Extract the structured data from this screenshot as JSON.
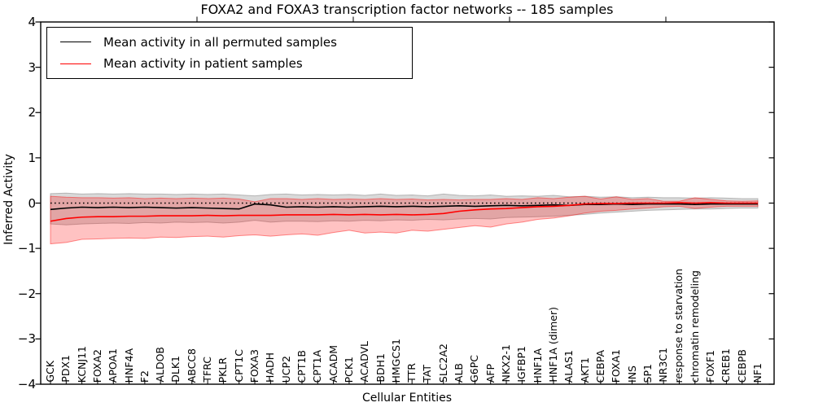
{
  "figure": {
    "title": "FOXA2 and FOXA3 transcription factor networks -- 185 samples",
    "xlabel": "Cellular Entities",
    "ylabel": "Inferred Activity"
  },
  "legend": {
    "items": [
      {
        "label": "Mean activity in all permuted samples",
        "color": "#000000"
      },
      {
        "label": "Mean activity in patient samples",
        "color": "#ff0000"
      }
    ]
  },
  "chart_data": {
    "type": "line",
    "title": "FOXA2 and FOXA3 transcription factor networks -- 185 samples",
    "xlabel": "Cellular Entities",
    "ylabel": "Inferred Activity",
    "ylim": [
      -4,
      4
    ],
    "yticks": [
      4,
      3,
      2,
      1,
      0,
      -1,
      -2,
      -3,
      -4
    ],
    "grid": false,
    "legend_position": "upper left",
    "reference_line": {
      "y": 0,
      "style": "dotted",
      "color": "#000000"
    },
    "categories": [
      "GCK",
      "PDX1",
      "KCNJ11",
      "FOXA2",
      "APOA1",
      "HNF4A",
      "F2",
      "ALDOB",
      "DLK1",
      "ABCC8",
      "TFRC",
      "PKLR",
      "CPT1C",
      "FOXA3",
      "HADH",
      "UCP2",
      "CPT1B",
      "CPT1A",
      "ACADM",
      "PCK1",
      "ACADVL",
      "BDH1",
      "HMGCS1",
      "TTR",
      "TAT",
      "SLC2A2",
      "ALB",
      "G6PC",
      "AFP",
      "NKX2-1",
      "IGFBP1",
      "HNF1A",
      "HNF1A (dimer)",
      "ALAS1",
      "AKT1",
      "CEBPA",
      "FOXA1",
      "INS",
      "SP1",
      "NR3C1",
      "response to starvation",
      "chromatin remodeling",
      "FOXF1",
      "CREB1",
      "CEBPB",
      "NF1"
    ],
    "series": [
      {
        "name": "Mean activity in all permuted samples",
        "color": "#000000",
        "values": [
          -0.14,
          -0.11,
          -0.09,
          -0.1,
          -0.09,
          -0.1,
          -0.09,
          -0.1,
          -0.11,
          -0.1,
          -0.11,
          -0.12,
          -0.13,
          -0.02,
          -0.04,
          -0.09,
          -0.08,
          -0.09,
          -0.08,
          -0.09,
          -0.08,
          -0.07,
          -0.08,
          -0.07,
          -0.08,
          -0.07,
          -0.06,
          -0.07,
          -0.06,
          -0.05,
          -0.06,
          -0.05,
          -0.04,
          -0.05,
          -0.03,
          -0.03,
          -0.02,
          -0.03,
          -0.02,
          -0.02,
          -0.02,
          -0.03,
          -0.02,
          -0.02,
          -0.02,
          -0.02
        ]
      },
      {
        "name": "Mean activity in patient samples",
        "color": "#ff0000",
        "values": [
          -0.4,
          -0.34,
          -0.31,
          -0.3,
          -0.3,
          -0.29,
          -0.29,
          -0.28,
          -0.28,
          -0.28,
          -0.27,
          -0.28,
          -0.27,
          -0.27,
          -0.27,
          -0.26,
          -0.26,
          -0.26,
          -0.25,
          -0.26,
          -0.25,
          -0.26,
          -0.25,
          -0.26,
          -0.25,
          -0.23,
          -0.18,
          -0.15,
          -0.13,
          -0.12,
          -0.1,
          -0.08,
          -0.07,
          -0.05,
          -0.02,
          -0.01,
          -0.01,
          0,
          0,
          0,
          0.01,
          0,
          0.01,
          0,
          0,
          0
        ]
      }
    ],
    "bands": [
      {
        "name": "permuted-samples-std-band",
        "color": "#808080",
        "alpha": 0.3,
        "upper": [
          0.21,
          0.22,
          0.2,
          0.21,
          0.2,
          0.21,
          0.2,
          0.2,
          0.19,
          0.2,
          0.19,
          0.2,
          0.18,
          0.16,
          0.19,
          0.2,
          0.18,
          0.19,
          0.18,
          0.19,
          0.17,
          0.2,
          0.17,
          0.18,
          0.16,
          0.2,
          0.17,
          0.16,
          0.18,
          0.15,
          0.16,
          0.15,
          0.17,
          0.14,
          0.15,
          0.13,
          0.14,
          0.12,
          0.13,
          0.12,
          0.12,
          0.11,
          0.12,
          0.11,
          0.1,
          0.1
        ],
        "lower": [
          -0.46,
          -0.48,
          -0.46,
          -0.45,
          -0.44,
          -0.45,
          -0.43,
          -0.44,
          -0.42,
          -0.43,
          -0.42,
          -0.44,
          -0.42,
          -0.38,
          -0.42,
          -0.4,
          -0.4,
          -0.41,
          -0.39,
          -0.4,
          -0.38,
          -0.39,
          -0.37,
          -0.38,
          -0.36,
          -0.37,
          -0.35,
          -0.34,
          -0.35,
          -0.32,
          -0.31,
          -0.3,
          -0.29,
          -0.27,
          -0.25,
          -0.22,
          -0.2,
          -0.18,
          -0.16,
          -0.15,
          -0.14,
          -0.13,
          -0.13,
          -0.12,
          -0.11,
          -0.11
        ]
      },
      {
        "name": "patient-samples-std-band",
        "color": "#ff0000",
        "alpha": 0.24,
        "upper": [
          0.15,
          0.13,
          0.12,
          0.12,
          0.11,
          0.12,
          0.1,
          0.11,
          0.1,
          0.11,
          0.1,
          0.11,
          0.09,
          0.03,
          0.1,
          0.1,
          0.08,
          0.1,
          0.08,
          0.09,
          0.08,
          0.1,
          0.08,
          0.09,
          0.07,
          0.08,
          0.07,
          0.08,
          0.08,
          0.1,
          0.08,
          0.12,
          0.1,
          0.13,
          0.15,
          0.09,
          0.14,
          0.08,
          0.1,
          0.04,
          0.04,
          0.12,
          0.08,
          0.05,
          0.04,
          0.05
        ],
        "lower": [
          -0.9,
          -0.87,
          -0.8,
          -0.79,
          -0.78,
          -0.77,
          -0.78,
          -0.75,
          -0.76,
          -0.74,
          -0.73,
          -0.75,
          -0.72,
          -0.7,
          -0.73,
          -0.7,
          -0.68,
          -0.71,
          -0.65,
          -0.6,
          -0.66,
          -0.64,
          -0.66,
          -0.6,
          -0.62,
          -0.58,
          -0.54,
          -0.5,
          -0.53,
          -0.46,
          -0.42,
          -0.36,
          -0.33,
          -0.28,
          -0.22,
          -0.18,
          -0.16,
          -0.13,
          -0.11,
          -0.08,
          -0.07,
          -0.12,
          -0.09,
          -0.07,
          -0.07,
          -0.07
        ]
      }
    ]
  }
}
